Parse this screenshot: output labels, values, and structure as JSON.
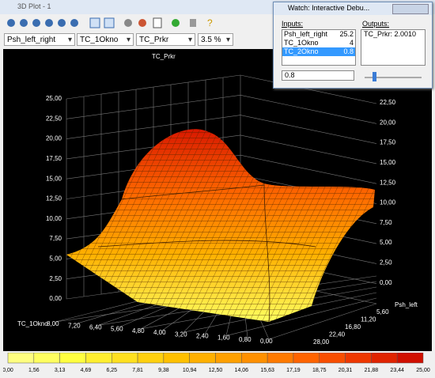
{
  "window": {
    "title": "3D Plot - 1",
    "selectors": [
      "Psh_left_right",
      "TC_1Okno",
      "TC_Prkr",
      "3.5 %"
    ]
  },
  "plot": {
    "z_title": "TC_Prkr",
    "z_ticks_left": [
      "25,00",
      "22,50",
      "20,00",
      "17,50",
      "15,00",
      "12,50",
      "10,00",
      "7,50",
      "5,00",
      "2,50",
      "0,00"
    ],
    "z_ticks_right": [
      "22,50",
      "20,00",
      "17,50",
      "15,00",
      "12,50",
      "10,00",
      "7,50",
      "5,00",
      "2,50",
      "0,00"
    ],
    "x_title": "TC_1Okno",
    "x_ticks": [
      "8,00",
      "7,20",
      "6,40",
      "5,60",
      "4,80",
      "4,00",
      "3,20",
      "2,40",
      "1,60",
      "0,80",
      "0,00"
    ],
    "y_title": "Psh_left",
    "y_ticks": [
      "5,60",
      "11,20",
      "16,80",
      "22,40",
      "28,00"
    ]
  },
  "colorbar": {
    "labels": [
      "0,00",
      "1,56",
      "3,13",
      "4,69",
      "6,25",
      "7,81",
      "9,38",
      "10,94",
      "12,50",
      "14,06",
      "15,63",
      "17,19",
      "18,75",
      "20,31",
      "21,88",
      "23,44",
      "25,00"
    ],
    "colors": [
      "#ffff80",
      "#ffff60",
      "#ffff40",
      "#ffee30",
      "#ffe020",
      "#ffd010",
      "#ffc000",
      "#ffb000",
      "#ffa000",
      "#ff9000",
      "#ff7a00",
      "#ff6400",
      "#f84e00",
      "#ee3800",
      "#e02400",
      "#d01000"
    ]
  },
  "watch": {
    "title": "Watch: Interactive Debu...",
    "inputs_label": "Inputs:",
    "outputs_label": "Outputs:",
    "inputs": [
      [
        "Psh_left_right",
        "25.2"
      ],
      [
        "TC_1Okno",
        "4"
      ],
      [
        "TC_2Okno",
        "0.8"
      ]
    ],
    "output": "TC_Prkr: 2.0010",
    "edit": "0.8"
  }
}
